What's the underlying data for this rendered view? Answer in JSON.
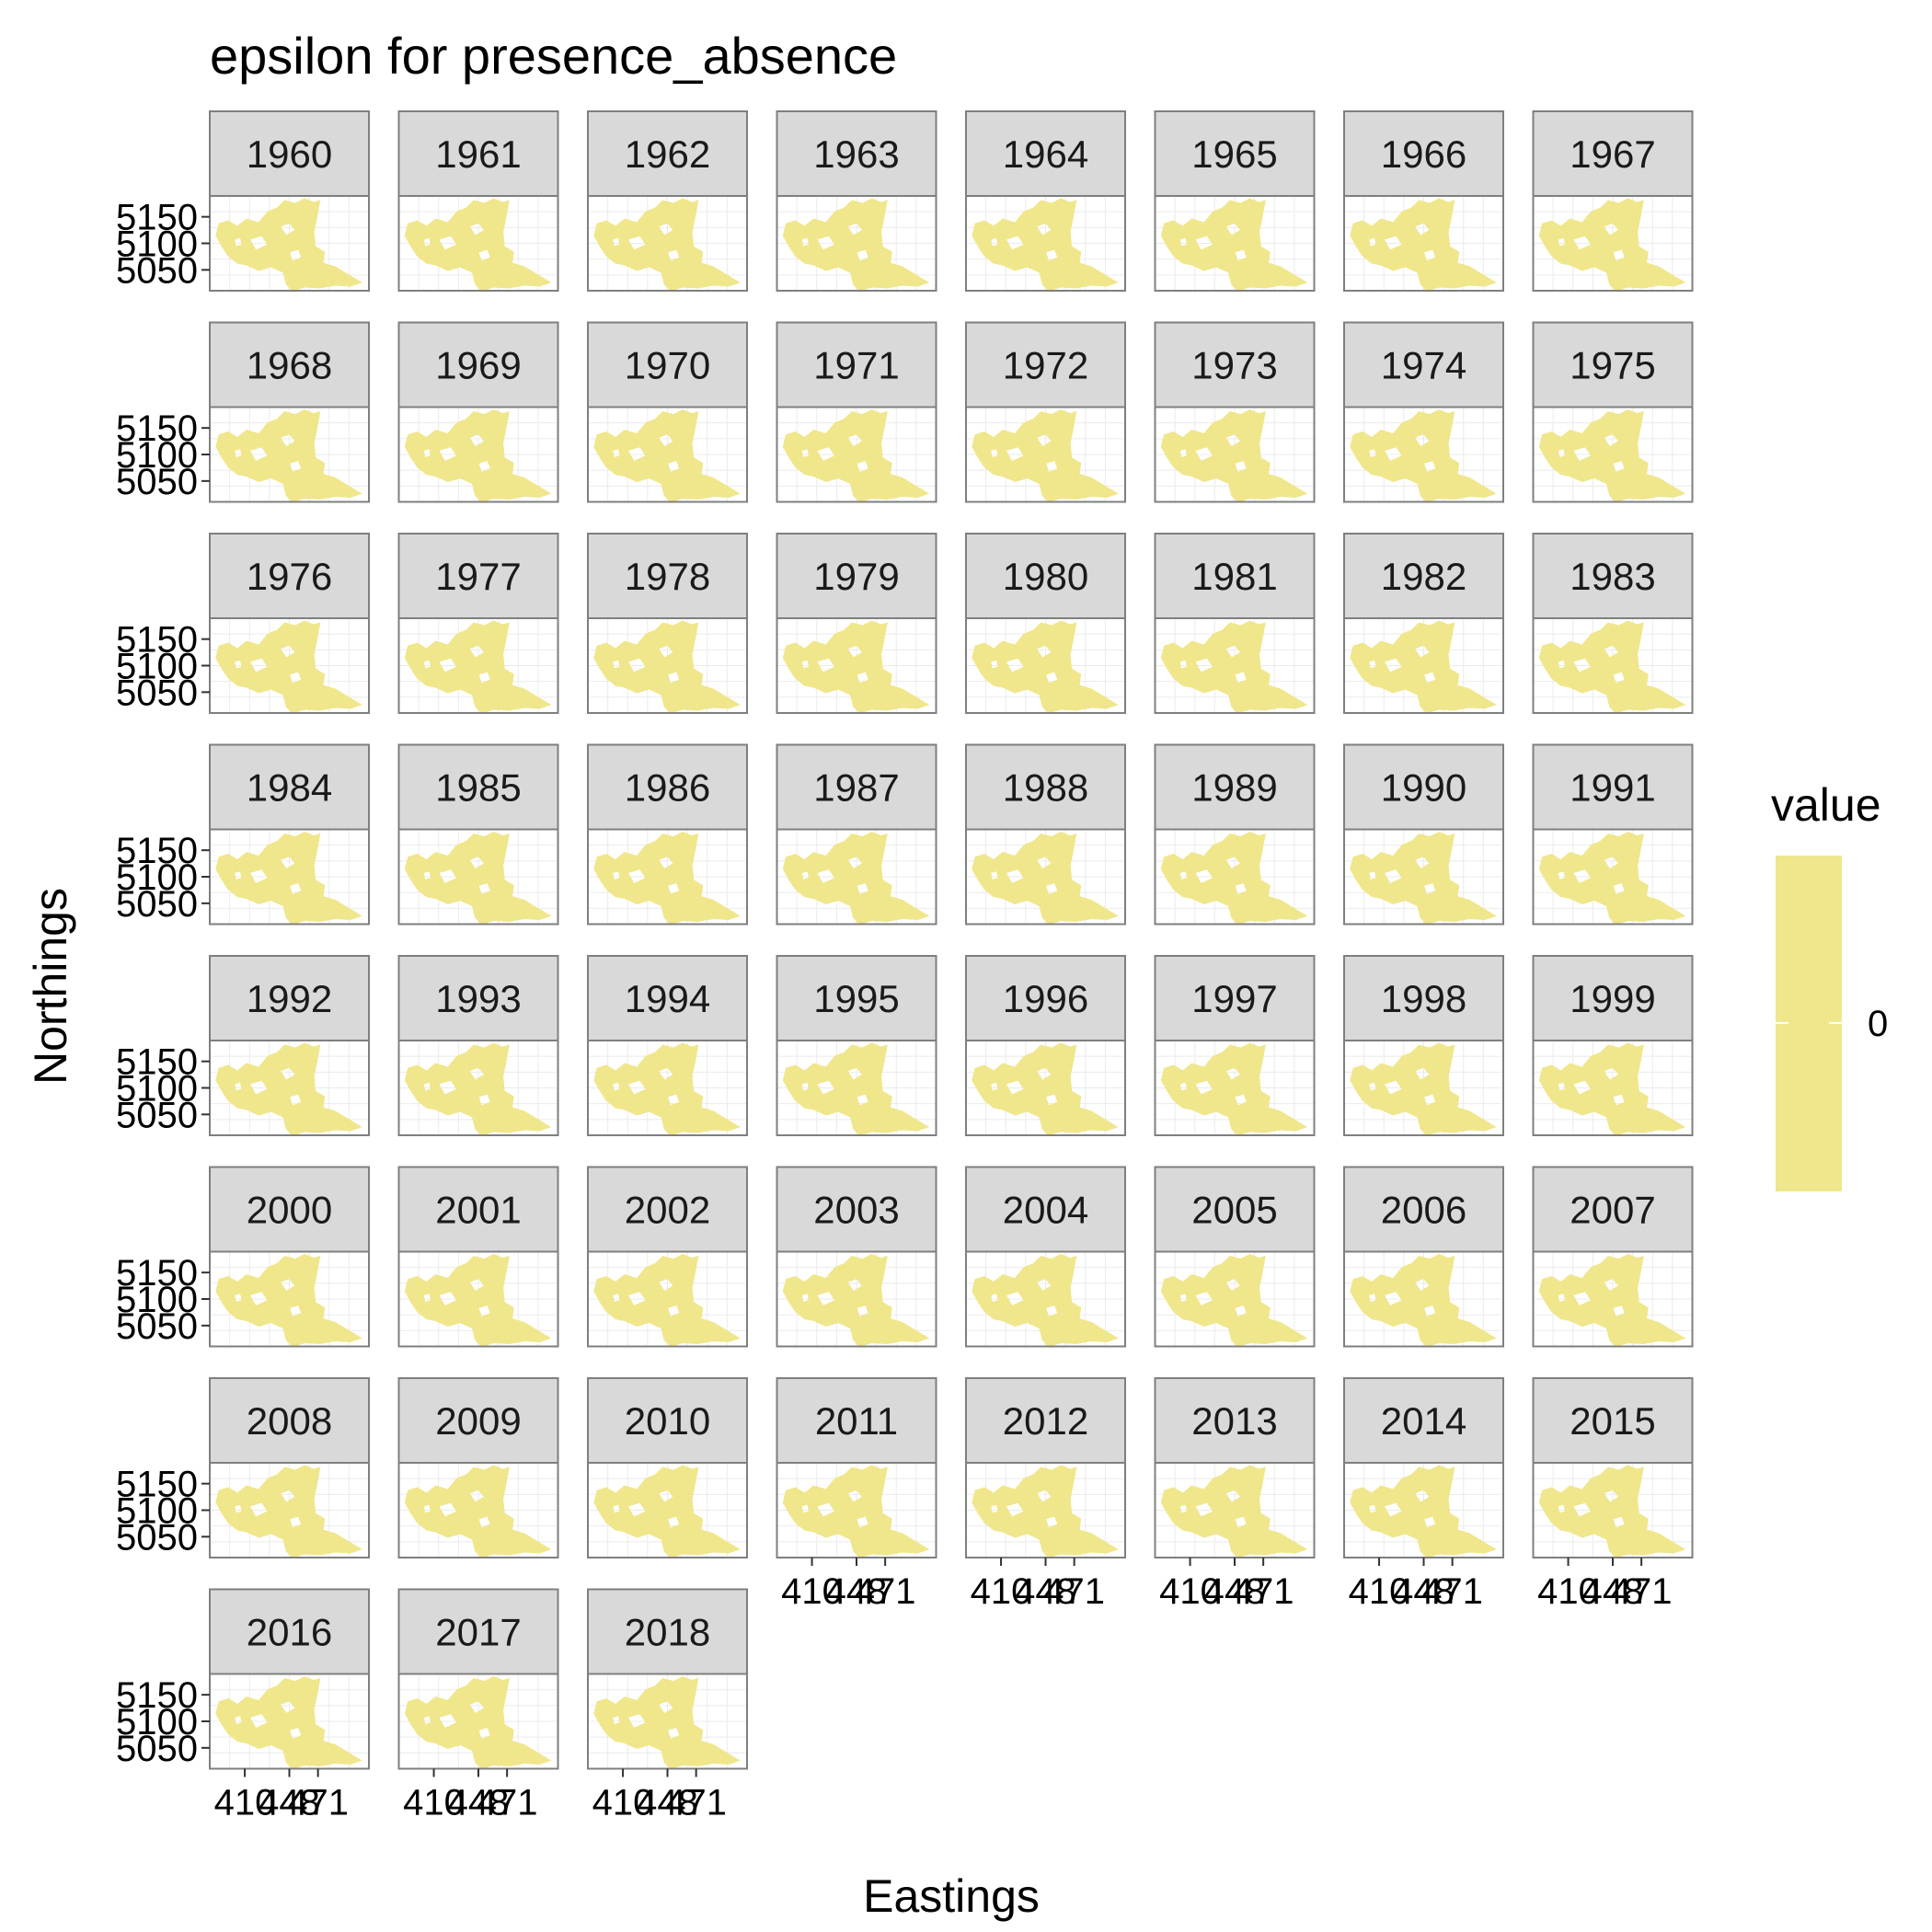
{
  "chart_data": {
    "type": "heatmap",
    "title": "epsilon for presence_absence",
    "xlabel": "Eastings",
    "ylabel": "Northings",
    "facets": [
      "1960",
      "1961",
      "1962",
      "1963",
      "1964",
      "1965",
      "1966",
      "1967",
      "1968",
      "1969",
      "1970",
      "1971",
      "1972",
      "1973",
      "1974",
      "1975",
      "1976",
      "1977",
      "1978",
      "1979",
      "1980",
      "1981",
      "1982",
      "1983",
      "1984",
      "1985",
      "1986",
      "1987",
      "1988",
      "1989",
      "1990",
      "1991",
      "1992",
      "1993",
      "1994",
      "1995",
      "1996",
      "1997",
      "1998",
      "1999",
      "2000",
      "2001",
      "2002",
      "2003",
      "2004",
      "2005",
      "2006",
      "2007",
      "2008",
      "2009",
      "2010",
      "2011",
      "2012",
      "2013",
      "2014",
      "2015",
      "2016",
      "2017",
      "2018"
    ],
    "ncol": 8,
    "y_ticks": [
      "5150",
      "5100",
      "5050"
    ],
    "x_ticks": [
      "410",
      "448",
      "471"
    ],
    "legend": {
      "title": "value",
      "labels": [
        "0"
      ],
      "placement": "right"
    },
    "fill_value": 0,
    "fill_color": "#f0e68c",
    "grid": true,
    "strip_color": "#d9d9d9"
  }
}
